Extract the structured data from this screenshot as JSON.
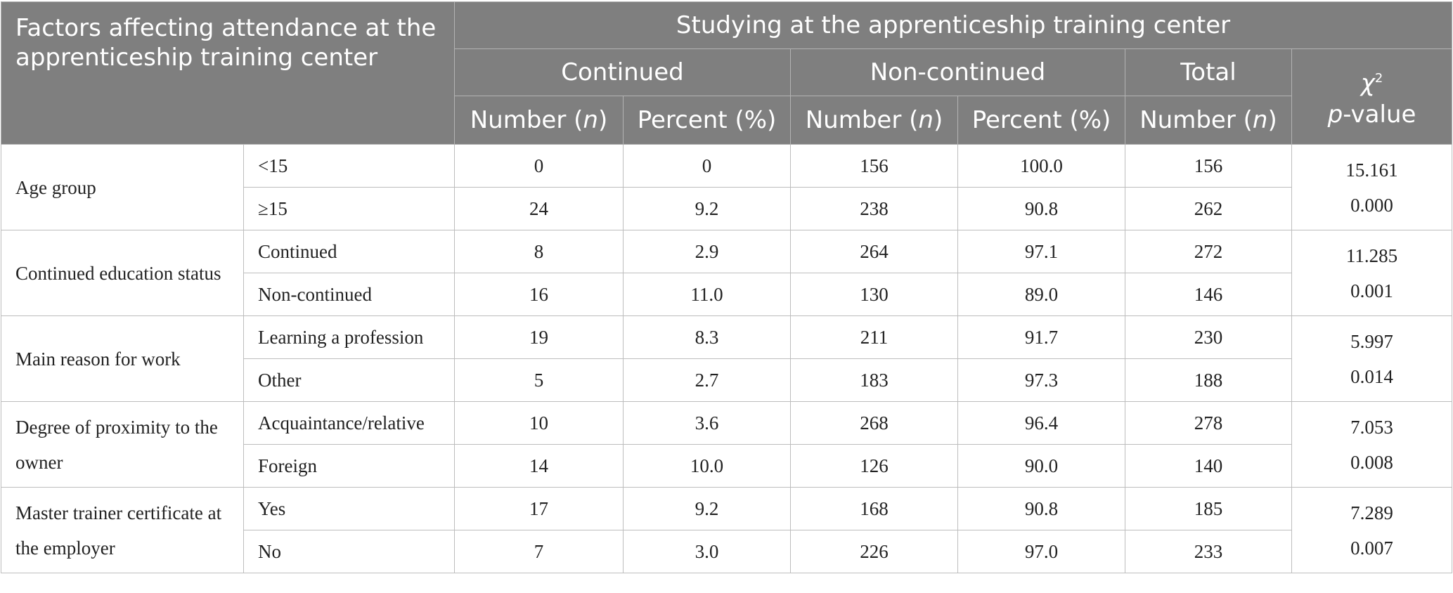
{
  "header": {
    "factors": "Factors affecting attendance at the apprenticeship training center",
    "group": "Studying at the apprenticeship training center",
    "continued": "Continued",
    "non_continued": "Non-continued",
    "total": "Total",
    "chi_symbol": "χ",
    "chi_exp": "2",
    "p_italic": "p",
    "p_rest": "-value",
    "number_label": "Number (",
    "n": "n",
    "close": ")",
    "percent_label": "Percent (%)"
  },
  "rows": [
    {
      "factor": "Age group",
      "chi2": "15.161",
      "p": "0.000",
      "levels": [
        {
          "label": "<15",
          "cont_n": "0",
          "cont_pct": "0",
          "non_n": "156",
          "non_pct": "100.0",
          "total": "156"
        },
        {
          "label": "≥15",
          "cont_n": "24",
          "cont_pct": "9.2",
          "non_n": "238",
          "non_pct": "90.8",
          "total": "262"
        }
      ]
    },
    {
      "factor": "Continued education status",
      "chi2": "11.285",
      "p": "0.001",
      "levels": [
        {
          "label": "Continued",
          "cont_n": "8",
          "cont_pct": "2.9",
          "non_n": "264",
          "non_pct": "97.1",
          "total": "272"
        },
        {
          "label": "Non-continued",
          "cont_n": "16",
          "cont_pct": "11.0",
          "non_n": "130",
          "non_pct": "89.0",
          "total": "146"
        }
      ]
    },
    {
      "factor": "Main reason for work",
      "chi2": "5.997",
      "p": "0.014",
      "levels": [
        {
          "label": "Learning a profession",
          "cont_n": "19",
          "cont_pct": "8.3",
          "non_n": "211",
          "non_pct": "91.7",
          "total": "230"
        },
        {
          "label": "Other",
          "cont_n": "5",
          "cont_pct": "2.7",
          "non_n": "183",
          "non_pct": "97.3",
          "total": "188"
        }
      ]
    },
    {
      "factor": "Degree of proximity to the owner",
      "chi2": "7.053",
      "p": "0.008",
      "levels": [
        {
          "label": "Acquaintance/relative",
          "cont_n": "10",
          "cont_pct": "3.6",
          "non_n": "268",
          "non_pct": "96.4",
          "total": "278"
        },
        {
          "label": "Foreign",
          "cont_n": "14",
          "cont_pct": "10.0",
          "non_n": "126",
          "non_pct": "90.0",
          "total": "140"
        }
      ]
    },
    {
      "factor": "Master trainer certificate at the employer",
      "chi2": "7.289",
      "p": "0.007",
      "levels": [
        {
          "label": "Yes",
          "cont_n": "17",
          "cont_pct": "9.2",
          "non_n": "168",
          "non_pct": "90.8",
          "total": "185"
        },
        {
          "label": "No",
          "cont_n": "7",
          "cont_pct": "3.0",
          "non_n": "226",
          "non_pct": "97.0",
          "total": "233"
        }
      ]
    }
  ]
}
